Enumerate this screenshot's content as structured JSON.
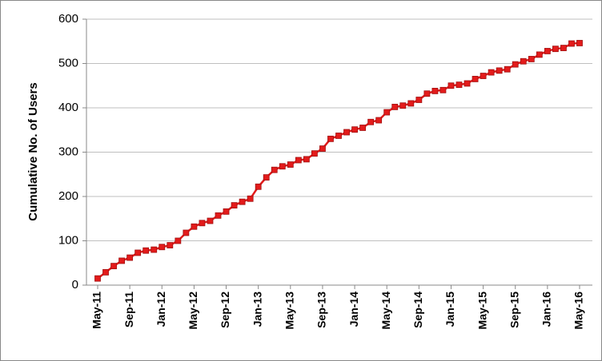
{
  "chart_data": {
    "type": "line",
    "y_label": "Cumulative No. of Users",
    "categories": [
      "May-11",
      null,
      null,
      null,
      "Sep-11",
      null,
      null,
      null,
      "Jan-12",
      null,
      null,
      null,
      "May-12",
      null,
      null,
      null,
      "Sep-12",
      null,
      null,
      null,
      "Jan-13",
      null,
      null,
      null,
      "May-13",
      null,
      null,
      null,
      "Sep-13",
      null,
      null,
      null,
      "Jan-14",
      null,
      null,
      null,
      "May-14",
      null,
      null,
      null,
      "Sep-14",
      null,
      null,
      null,
      "Jan-15",
      null,
      null,
      null,
      "May-15",
      null,
      null,
      null,
      "Sep-15",
      null,
      null,
      null,
      "Jan-16",
      null,
      null,
      null,
      "May-16"
    ],
    "values": [
      15,
      29,
      43,
      55,
      62,
      73,
      78,
      80,
      86,
      90,
      100,
      118,
      132,
      140,
      145,
      157,
      166,
      180,
      188,
      195,
      222,
      243,
      260,
      268,
      272,
      282,
      284,
      297,
      308,
      330,
      337,
      345,
      351,
      355,
      368,
      372,
      390,
      402,
      405,
      410,
      418,
      432,
      438,
      440,
      450,
      452,
      455,
      465,
      472,
      480,
      484,
      487,
      498,
      505,
      510,
      520,
      528,
      533,
      535,
      545,
      546
    ],
    "color": "#e31b1b",
    "ylim": [
      0,
      600
    ],
    "yticks": [
      0,
      100,
      200,
      300,
      400,
      500,
      600
    ],
    "grid": true
  }
}
